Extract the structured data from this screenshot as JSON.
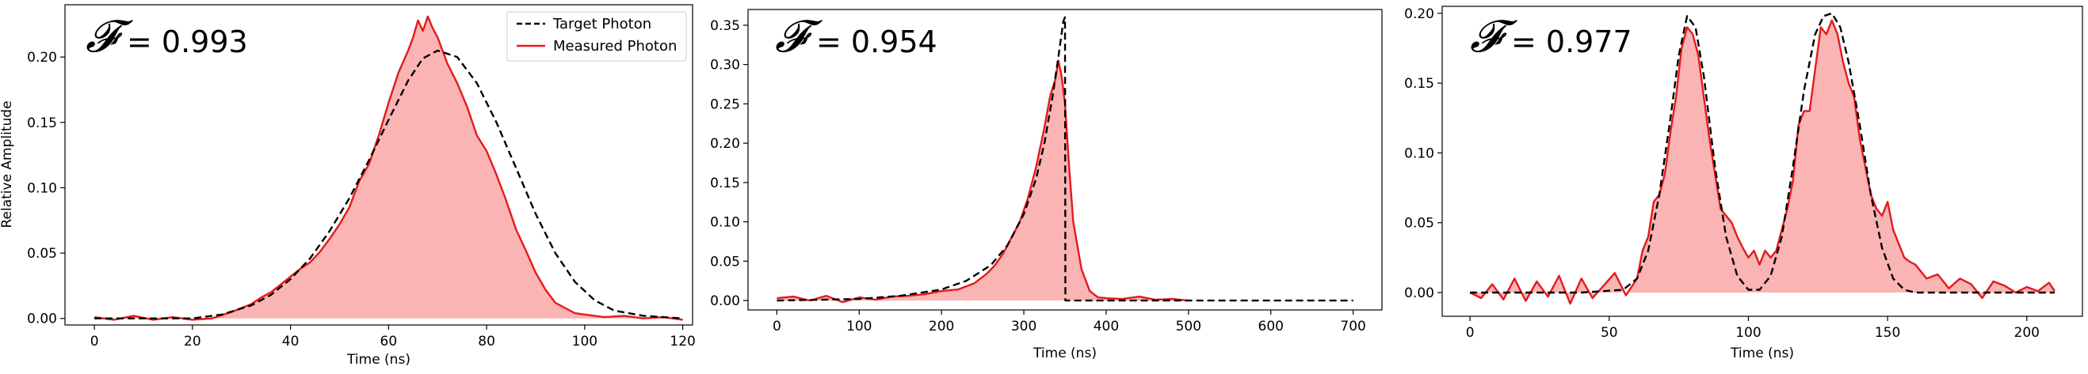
{
  "chart_data": [
    {
      "type": "area",
      "title": "",
      "xlabel": "Time (ns)",
      "ylabel": "Relative Amplitude",
      "xlim": [
        -6,
        122
      ],
      "ylim": [
        -0.005,
        0.24
      ],
      "xticks": [
        0,
        20,
        40,
        60,
        80,
        100,
        120
      ],
      "yticks": [
        0.0,
        0.05,
        0.1,
        0.15,
        0.2
      ],
      "ytick_labels": [
        "0.00",
        "0.05",
        "0.10",
        "0.15",
        "0.20"
      ],
      "annotation": {
        "symbol": "𝓕",
        "text": "= 0.993"
      },
      "legend": {
        "placement": "top-right",
        "entries": [
          "Target Photon",
          "Measured Photon"
        ]
      },
      "series": [
        {
          "name": "Target Photon",
          "style": "dashed",
          "color": "#000000",
          "x": [
            0,
            10,
            20,
            26,
            32,
            36,
            40,
            44,
            48,
            52,
            56,
            60,
            64,
            67,
            70,
            74,
            78,
            82,
            86,
            90,
            94,
            98,
            102,
            106,
            112,
            120
          ],
          "y": [
            0.0,
            0.0,
            0.0,
            0.003,
            0.01,
            0.018,
            0.03,
            0.046,
            0.067,
            0.092,
            0.121,
            0.152,
            0.182,
            0.199,
            0.205,
            0.2,
            0.18,
            0.15,
            0.115,
            0.08,
            0.05,
            0.028,
            0.014,
            0.006,
            0.002,
            0.0
          ]
        },
        {
          "name": "Measured Photon",
          "style": "solid",
          "color": "#e31a1c",
          "fill": "#fbb4b4",
          "x": [
            0,
            4,
            8,
            12,
            16,
            20,
            24,
            28,
            30,
            32,
            34,
            36,
            38,
            40,
            42,
            44,
            46,
            48,
            50,
            52,
            54,
            56,
            58,
            60,
            62,
            64,
            65,
            66,
            67,
            68,
            69,
            70,
            72,
            74,
            76,
            78,
            80,
            82,
            84,
            86,
            88,
            90,
            92,
            94,
            96,
            98,
            100,
            104,
            108,
            112,
            116,
            120
          ],
          "y": [
            0.001,
            -0.001,
            0.002,
            -0.001,
            0.001,
            -0.001,
            0.0,
            0.005,
            0.008,
            0.011,
            0.016,
            0.02,
            0.026,
            0.032,
            0.038,
            0.043,
            0.051,
            0.061,
            0.072,
            0.085,
            0.105,
            0.118,
            0.14,
            0.165,
            0.188,
            0.205,
            0.215,
            0.228,
            0.22,
            0.231,
            0.222,
            0.215,
            0.195,
            0.18,
            0.162,
            0.14,
            0.128,
            0.11,
            0.09,
            0.068,
            0.052,
            0.035,
            0.022,
            0.012,
            0.008,
            0.004,
            0.003,
            0.001,
            0.002,
            0.0,
            0.001,
            -0.001
          ]
        }
      ]
    },
    {
      "type": "area",
      "title": "",
      "xlabel": "Time (ns)",
      "ylabel": "",
      "xlim": [
        -35,
        735
      ],
      "ylim": [
        -0.012,
        0.37
      ],
      "xticks": [
        0,
        100,
        200,
        300,
        400,
        500,
        600,
        700
      ],
      "yticks": [
        0.0,
        0.05,
        0.1,
        0.15,
        0.2,
        0.25,
        0.3,
        0.35
      ],
      "ytick_labels": [
        "0.00",
        "0.05",
        "0.10",
        "0.15",
        "0.20",
        "0.25",
        "0.30",
        "0.35"
      ],
      "annotation": {
        "symbol": "𝓕",
        "text": "= 0.954"
      },
      "series": [
        {
          "name": "Target Photon",
          "style": "dashed",
          "color": "#000000",
          "x": [
            0,
            100,
            150,
            200,
            230,
            260,
            280,
            300,
            315,
            325,
            335,
            342,
            348,
            350,
            350.5,
            400,
            500,
            600,
            700
          ],
          "y": [
            0.0,
            0.002,
            0.006,
            0.014,
            0.025,
            0.045,
            0.07,
            0.11,
            0.155,
            0.2,
            0.26,
            0.31,
            0.355,
            0.36,
            0.0,
            0.0,
            0.0,
            0.0,
            0.0
          ]
        },
        {
          "name": "Measured Photon",
          "style": "solid",
          "color": "#e31a1c",
          "fill": "#fbb4b4",
          "x": [
            0,
            20,
            40,
            60,
            80,
            100,
            120,
            140,
            160,
            180,
            200,
            220,
            240,
            255,
            265,
            275,
            285,
            295,
            305,
            315,
            325,
            332,
            338,
            342,
            346,
            350,
            355,
            360,
            370,
            380,
            390,
            400,
            420,
            440,
            460,
            480,
            500
          ],
          "y": [
            0.003,
            0.005,
            0.0,
            0.006,
            -0.002,
            0.004,
            0.001,
            0.005,
            0.006,
            0.008,
            0.012,
            0.014,
            0.022,
            0.034,
            0.045,
            0.06,
            0.08,
            0.1,
            0.13,
            0.17,
            0.22,
            0.26,
            0.28,
            0.305,
            0.285,
            0.25,
            0.17,
            0.1,
            0.04,
            0.012,
            0.004,
            0.003,
            0.002,
            0.005,
            0.001,
            0.002,
            0.0
          ]
        }
      ]
    },
    {
      "type": "area",
      "title": "",
      "xlabel": "Time (ns)",
      "ylabel": "",
      "xlim": [
        -10,
        220
      ],
      "ylim": [
        -0.017,
        0.205
      ],
      "xticks": [
        0,
        50,
        100,
        150,
        200
      ],
      "yticks": [
        0.0,
        0.05,
        0.1,
        0.15,
        0.2
      ],
      "ytick_labels": [
        "0.00",
        "0.05",
        "0.10",
        "0.15",
        "0.20"
      ],
      "annotation": {
        "symbol": "𝓕",
        "text": "= 0.977"
      },
      "series": [
        {
          "name": "Target Photon",
          "style": "dashed",
          "color": "#000000",
          "x": [
            0,
            20,
            40,
            55,
            60,
            64,
            68,
            72,
            75,
            78,
            81,
            84,
            88,
            92,
            96,
            100,
            104,
            108,
            112,
            116,
            120,
            124,
            127,
            130,
            133,
            136,
            140,
            144,
            148,
            152,
            156,
            160,
            170,
            180,
            200,
            210
          ],
          "y": [
            0.0,
            0.0,
            0.0,
            0.002,
            0.01,
            0.03,
            0.07,
            0.125,
            0.17,
            0.198,
            0.19,
            0.155,
            0.09,
            0.04,
            0.012,
            0.002,
            0.002,
            0.012,
            0.04,
            0.09,
            0.145,
            0.185,
            0.198,
            0.2,
            0.19,
            0.165,
            0.12,
            0.07,
            0.032,
            0.01,
            0.002,
            0.0,
            0.0,
            0.0,
            0.0,
            0.0
          ]
        },
        {
          "name": "Measured Photon",
          "style": "solid",
          "color": "#e31a1c",
          "fill": "#fbb4b4",
          "x": [
            0,
            4,
            8,
            12,
            16,
            20,
            24,
            28,
            32,
            36,
            40,
            44,
            48,
            52,
            56,
            60,
            62,
            64,
            66,
            68,
            70,
            72,
            74,
            76,
            78,
            80,
            82,
            84,
            86,
            88,
            90,
            92,
            94,
            96,
            98,
            100,
            102,
            104,
            106,
            108,
            110,
            112,
            114,
            116,
            118,
            120,
            122,
            124,
            126,
            128,
            130,
            132,
            134,
            136,
            138,
            140,
            142,
            144,
            146,
            148,
            150,
            152,
            154,
            156,
            158,
            160,
            164,
            168,
            172,
            176,
            180,
            184,
            188,
            192,
            196,
            200,
            204,
            208,
            210
          ],
          "y": [
            0.0,
            -0.004,
            0.006,
            -0.005,
            0.01,
            -0.006,
            0.008,
            -0.003,
            0.012,
            -0.008,
            0.01,
            -0.004,
            0.005,
            0.014,
            -0.002,
            0.01,
            0.03,
            0.04,
            0.065,
            0.07,
            0.085,
            0.115,
            0.14,
            0.175,
            0.19,
            0.185,
            0.17,
            0.14,
            0.11,
            0.085,
            0.06,
            0.055,
            0.05,
            0.04,
            0.032,
            0.025,
            0.03,
            0.02,
            0.03,
            0.025,
            0.03,
            0.045,
            0.06,
            0.08,
            0.12,
            0.13,
            0.13,
            0.16,
            0.19,
            0.185,
            0.195,
            0.185,
            0.165,
            0.15,
            0.14,
            0.11,
            0.09,
            0.07,
            0.06,
            0.055,
            0.065,
            0.045,
            0.035,
            0.025,
            0.022,
            0.02,
            0.01,
            0.013,
            0.003,
            0.01,
            0.006,
            -0.004,
            0.008,
            0.005,
            0.0,
            0.004,
            0.001,
            0.007,
            0.001
          ]
        }
      ]
    }
  ]
}
